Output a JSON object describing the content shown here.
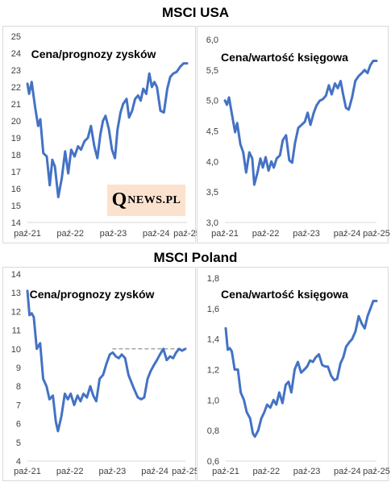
{
  "headers": {
    "usa": "MSCI USA",
    "poland": "MSCI Poland"
  },
  "logo": {
    "initial": "Q",
    "rest": "NEWS.PL"
  },
  "colors": {
    "line": "#4472c4",
    "dashed": "#a6a6a6",
    "grid": "#d9d9d9"
  },
  "chart_data": [
    {
      "id": "usa-pe",
      "type": "line",
      "title": "Cena/prognozy zysków",
      "xlabel": "",
      "ylabel": "",
      "ylim": [
        14,
        25
      ],
      "yticks": [
        "14",
        "15",
        "16",
        "17",
        "18",
        "19",
        "20",
        "21",
        "22",
        "23",
        "24",
        "25"
      ],
      "xticks": [
        "paź-21",
        "paź-22",
        "paź-23",
        "paź-24",
        "paź-25"
      ],
      "x": [
        0,
        0.04,
        0.1,
        0.18,
        0.25,
        0.3,
        0.37,
        0.45,
        0.52,
        0.58,
        0.64,
        0.72,
        0.8,
        0.88,
        0.95,
        1.02,
        1.1,
        1.18,
        1.25,
        1.33,
        1.41,
        1.48,
        1.56,
        1.63,
        1.7,
        1.76,
        1.82,
        1.9,
        1.97,
        2.04,
        2.1,
        2.17,
        2.23,
        2.31,
        2.37,
        2.44,
        2.51,
        2.58,
        2.64,
        2.7,
        2.77,
        2.84,
        2.9,
        2.96,
        3.02,
        3.1,
        3.18,
        3.26,
        3.33,
        3.4,
        3.48,
        3.56,
        3.64,
        3.72
      ],
      "series": [
        {
          "values": [
            22.2,
            21.6,
            22.3,
            20.8,
            19.7,
            20.1,
            18.1,
            17.9,
            16.2,
            17.7,
            17.3,
            15.5,
            16.6,
            18.2,
            16.9,
            18.3,
            17.9,
            18.5,
            18.3,
            18.8,
            19.0,
            19.7,
            18.5,
            17.8,
            19.2,
            20.0,
            20.3,
            19.5,
            18.3,
            17.8,
            19.5,
            20.5,
            21.0,
            21.3,
            20.2,
            20.6,
            21.3,
            21.5,
            21.2,
            21.9,
            21.6,
            22.8,
            22.0,
            22.3,
            22.0,
            20.6,
            20.5,
            21.9,
            22.6,
            22.8,
            22.9,
            23.2,
            23.4,
            23.4
          ]
        }
      ]
    },
    {
      "id": "usa-pb",
      "type": "line",
      "title": "Cena/wartość księgowa",
      "xlabel": "",
      "ylabel": "",
      "ylim": [
        3.0,
        6.0
      ],
      "yticks": [
        "3,0",
        "3,5",
        "4,0",
        "4,5",
        "5,0",
        "5,5",
        "6,0"
      ],
      "xticks": [
        "paź-21",
        "paź-22",
        "paź-23",
        "paź-24",
        "paź-25"
      ],
      "x": [
        0,
        0.05,
        0.1,
        0.17,
        0.25,
        0.3,
        0.38,
        0.45,
        0.52,
        0.6,
        0.67,
        0.72,
        0.8,
        0.87,
        0.93,
        1.0,
        1.07,
        1.14,
        1.2,
        1.27,
        1.35,
        1.42,
        1.5,
        1.58,
        1.65,
        1.72,
        1.8,
        1.88,
        1.96,
        2.03,
        2.1,
        2.18,
        2.25,
        2.33,
        2.4,
        2.48,
        2.55,
        2.62,
        2.7,
        2.77,
        2.84,
        2.9,
        2.97,
        3.04,
        3.12,
        3.2,
        3.28,
        3.36,
        3.43,
        3.5,
        3.57,
        3.64,
        3.72
      ],
      "series": [
        {
          "values": [
            5.0,
            4.93,
            5.05,
            4.78,
            4.48,
            4.63,
            4.28,
            4.15,
            3.82,
            4.15,
            4.05,
            3.62,
            3.82,
            4.05,
            3.9,
            4.07,
            3.85,
            4.0,
            3.9,
            4.05,
            4.1,
            4.35,
            4.43,
            4.02,
            3.98,
            4.3,
            4.55,
            4.6,
            4.65,
            4.8,
            4.6,
            4.8,
            4.92,
            5.0,
            5.02,
            5.08,
            5.25,
            5.1,
            5.28,
            5.2,
            5.32,
            5.1,
            4.88,
            4.85,
            5.05,
            5.32,
            5.4,
            5.45,
            5.5,
            5.45,
            5.58,
            5.65,
            5.65
          ]
        }
      ]
    },
    {
      "id": "poland-pe",
      "type": "line",
      "title": "Cena/prognozy zysków",
      "xlabel": "",
      "ylabel": "",
      "ylim": [
        4,
        14
      ],
      "yticks": [
        "4",
        "5",
        "6",
        "7",
        "8",
        "9",
        "10",
        "11",
        "12",
        "13",
        "14"
      ],
      "xticks": [
        "paź-21",
        "paź-22",
        "paź-23",
        "paź-24",
        "paź-25"
      ],
      "reference_line": {
        "value": 10,
        "x_from": 2.0,
        "x_to": 3.72
      },
      "x": [
        0,
        0.05,
        0.1,
        0.15,
        0.22,
        0.3,
        0.37,
        0.45,
        0.52,
        0.6,
        0.67,
        0.72,
        0.8,
        0.88,
        0.95,
        1.02,
        1.1,
        1.18,
        1.25,
        1.32,
        1.4,
        1.48,
        1.55,
        1.62,
        1.7,
        1.78,
        1.86,
        1.94,
        2.01,
        2.08,
        2.15,
        2.22,
        2.3,
        2.38,
        2.45,
        2.52,
        2.6,
        2.68,
        2.75,
        2.83,
        2.9,
        2.97,
        3.05,
        3.12,
        3.2,
        3.28,
        3.36,
        3.43,
        3.5,
        3.57,
        3.64,
        3.72
      ],
      "series": [
        {
          "values": [
            13.1,
            11.8,
            11.9,
            11.7,
            10.0,
            10.3,
            8.4,
            8.0,
            7.3,
            7.5,
            6.1,
            5.6,
            6.4,
            7.6,
            7.3,
            7.6,
            7.0,
            7.5,
            7.2,
            7.6,
            7.4,
            8.0,
            7.5,
            7.2,
            8.4,
            8.6,
            9.2,
            9.7,
            9.8,
            9.6,
            9.5,
            9.7,
            9.5,
            8.6,
            8.2,
            7.8,
            7.4,
            7.3,
            7.4,
            8.4,
            8.8,
            9.1,
            9.4,
            9.7,
            10.0,
            9.4,
            9.6,
            9.5,
            9.8,
            10.0,
            9.9,
            10.0
          ]
        }
      ]
    },
    {
      "id": "poland-pb",
      "type": "line",
      "title": "Cena/wartość księgowa",
      "xlabel": "",
      "ylabel": "",
      "ylim": [
        0.6,
        1.8
      ],
      "yticks": [
        "0,6",
        "0,8",
        "1,0",
        "1,2",
        "1,4",
        "1,6",
        "1,8"
      ],
      "xticks": [
        "paź-21",
        "paź-22",
        "paź-23",
        "paź-24",
        "paź-25"
      ],
      "x": [
        0,
        0.05,
        0.1,
        0.15,
        0.22,
        0.3,
        0.37,
        0.45,
        0.52,
        0.6,
        0.67,
        0.72,
        0.8,
        0.88,
        0.95,
        1.02,
        1.1,
        1.18,
        1.25,
        1.32,
        1.4,
        1.48,
        1.55,
        1.62,
        1.7,
        1.78,
        1.86,
        1.94,
        2.01,
        2.08,
        2.15,
        2.22,
        2.3,
        2.38,
        2.45,
        2.52,
        2.6,
        2.68,
        2.75,
        2.83,
        2.9,
        2.97,
        3.05,
        3.12,
        3.2,
        3.28,
        3.36,
        3.43,
        3.5,
        3.57,
        3.64,
        3.72
      ],
      "series": [
        {
          "values": [
            1.47,
            1.33,
            1.34,
            1.32,
            1.2,
            1.2,
            1.05,
            1.0,
            0.92,
            0.88,
            0.78,
            0.76,
            0.8,
            0.88,
            0.92,
            0.97,
            0.95,
            1.0,
            0.97,
            1.05,
            0.98,
            1.1,
            1.12,
            1.05,
            1.2,
            1.25,
            1.18,
            1.2,
            1.22,
            1.26,
            1.25,
            1.28,
            1.3,
            1.23,
            1.22,
            1.22,
            1.16,
            1.13,
            1.14,
            1.24,
            1.28,
            1.35,
            1.38,
            1.4,
            1.45,
            1.55,
            1.5,
            1.47,
            1.55,
            1.6,
            1.65,
            1.65
          ]
        }
      ]
    }
  ]
}
